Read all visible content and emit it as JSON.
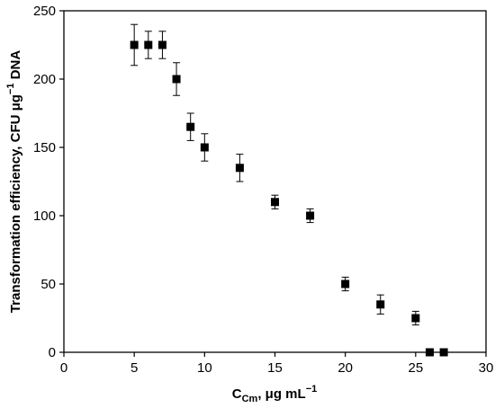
{
  "chart_data": {
    "type": "scatter",
    "xlabel": {
      "main": "C",
      "sub": "Cm",
      "rest": ", μg mL",
      "sup": "−1"
    },
    "ylabel": {
      "before": "Transformation efficiency, CFU μg",
      "sup": "−1",
      "after": " DNA"
    },
    "xlim": [
      0,
      30
    ],
    "ylim": [
      0,
      250
    ],
    "xticks": [
      0,
      5,
      10,
      15,
      20,
      25,
      30
    ],
    "yticks": [
      0,
      50,
      100,
      150,
      200,
      250
    ],
    "grid": false,
    "marker": "square",
    "marker_color": "#000000",
    "points": [
      {
        "x": 5,
        "y": 225,
        "err": 15
      },
      {
        "x": 6,
        "y": 225,
        "err": 10
      },
      {
        "x": 7,
        "y": 225,
        "err": 10
      },
      {
        "x": 8,
        "y": 200,
        "err": 12
      },
      {
        "x": 9,
        "y": 165,
        "err": 10
      },
      {
        "x": 10,
        "y": 150,
        "err": 10
      },
      {
        "x": 12.5,
        "y": 135,
        "err": 10
      },
      {
        "x": 15,
        "y": 110,
        "err": 5
      },
      {
        "x": 17.5,
        "y": 100,
        "err": 5
      },
      {
        "x": 20,
        "y": 50,
        "err": 5
      },
      {
        "x": 22.5,
        "y": 35,
        "err": 7
      },
      {
        "x": 25,
        "y": 25,
        "err": 5
      },
      {
        "x": 26,
        "y": 0,
        "err": 0
      },
      {
        "x": 27,
        "y": 0,
        "err": 0
      }
    ]
  }
}
